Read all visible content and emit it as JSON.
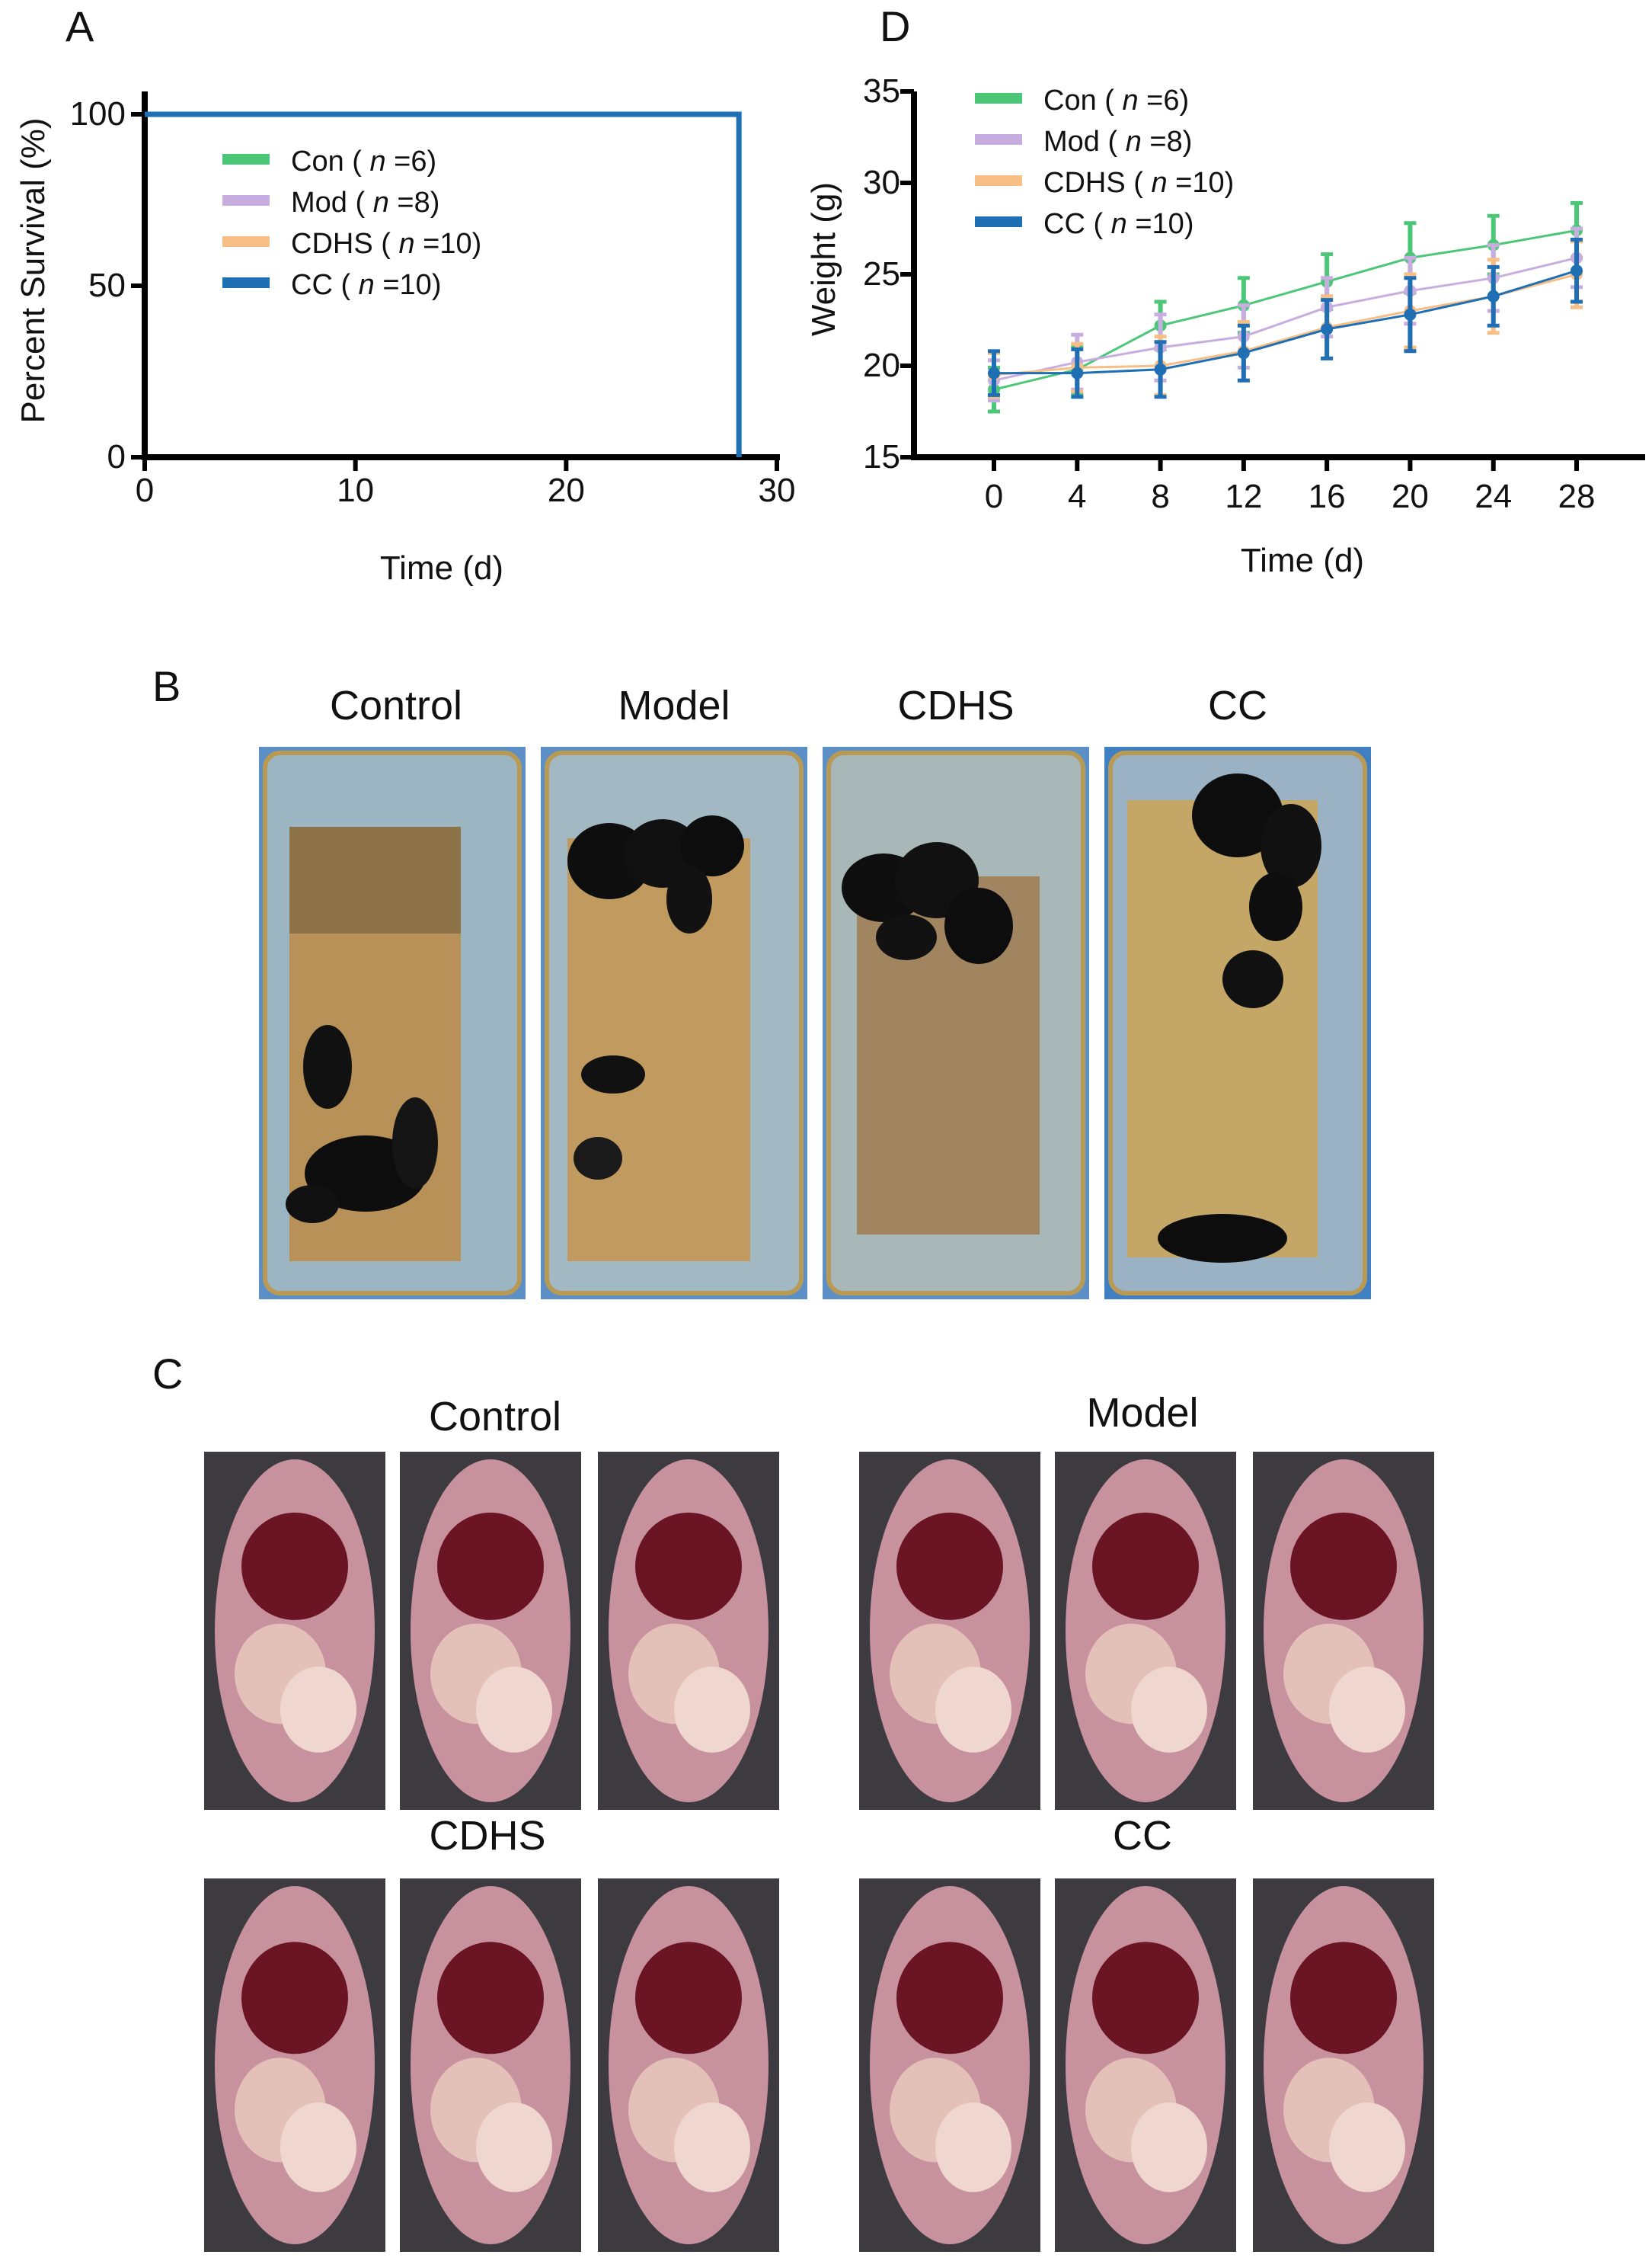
{
  "panels": {
    "A": "A",
    "B": "B",
    "C": "C",
    "D": "D"
  },
  "chart_A": {
    "type": "line",
    "ylabel": "Percent Survival (%)",
    "xlabel": "Time (d)",
    "xlim": [
      0,
      30
    ],
    "ylim": [
      0,
      100
    ],
    "xticks": [
      0,
      10,
      20,
      30
    ],
    "yticks": [
      0,
      50,
      100
    ],
    "legend_placement": "top-left inside",
    "legend": [
      {
        "name": "Con",
        "n_label": "n",
        "n_value": "=6",
        "color": "#4cc778"
      },
      {
        "name": "Mod",
        "n_label": "n",
        "n_value": "=8",
        "color": "#c8aee0"
      },
      {
        "name": "CDHS",
        "n_label": "n",
        "n_value": "=10",
        "color": "#f7bf86"
      },
      {
        "name": "CC",
        "n_label": "n",
        "n_value": "=10",
        "color": "#1f6fb4"
      }
    ],
    "series_line": {
      "x": [
        0,
        28.2,
        28.2
      ],
      "y": [
        100,
        100,
        0
      ],
      "color": "#1f6fb4"
    }
  },
  "chart_D": {
    "type": "line",
    "ylabel": "Weight (g)",
    "xlabel": "Time (d)",
    "xticks": [
      0,
      4,
      8,
      12,
      16,
      20,
      24,
      28
    ],
    "yticks": [
      15,
      20,
      25,
      30,
      35
    ],
    "ylim": [
      15,
      35
    ],
    "legend_placement": "top-left inside",
    "x": [
      0,
      4,
      8,
      12,
      16,
      20,
      24,
      28
    ],
    "series": [
      {
        "name": "Con",
        "n_label": "n",
        "n_value": "=6",
        "color": "#4cc778",
        "values": [
          18.7,
          19.8,
          22.2,
          23.3,
          24.6,
          25.9,
          26.6,
          27.4
        ],
        "errors": [
          1.2,
          1.3,
          1.3,
          1.5,
          1.5,
          1.9,
          1.6,
          1.5
        ]
      },
      {
        "name": "Mod",
        "n_label": "n",
        "n_value": "=8",
        "color": "#c8aee0",
        "values": [
          19.2,
          20.2,
          21.0,
          21.6,
          23.2,
          24.1,
          24.8,
          25.9
        ],
        "errors": [
          1.1,
          1.5,
          1.8,
          1.7,
          1.6,
          1.8,
          1.8,
          1.6
        ]
      },
      {
        "name": "CDHS",
        "n_label": "n",
        "n_value": "=10",
        "color": "#f7bf86",
        "values": [
          19.5,
          19.9,
          20.0,
          20.8,
          22.1,
          23.0,
          23.8,
          25.0
        ],
        "errors": [
          1.2,
          1.3,
          1.6,
          1.6,
          1.7,
          2.0,
          2.0,
          1.8
        ]
      },
      {
        "name": "CC",
        "n_label": "n",
        "n_value": "=10",
        "color": "#1f6fb4",
        "values": [
          19.6,
          19.6,
          19.8,
          20.7,
          22.0,
          22.8,
          23.8,
          25.2
        ],
        "errors": [
          1.2,
          1.3,
          1.5,
          1.5,
          1.6,
          2.0,
          1.6,
          1.7
        ]
      }
    ]
  },
  "panel_B": {
    "titles": [
      "Control",
      "Model",
      "CDHS",
      "CC"
    ]
  },
  "panel_C": {
    "titles": [
      "Control",
      "Model",
      "CDHS",
      "CC"
    ]
  }
}
